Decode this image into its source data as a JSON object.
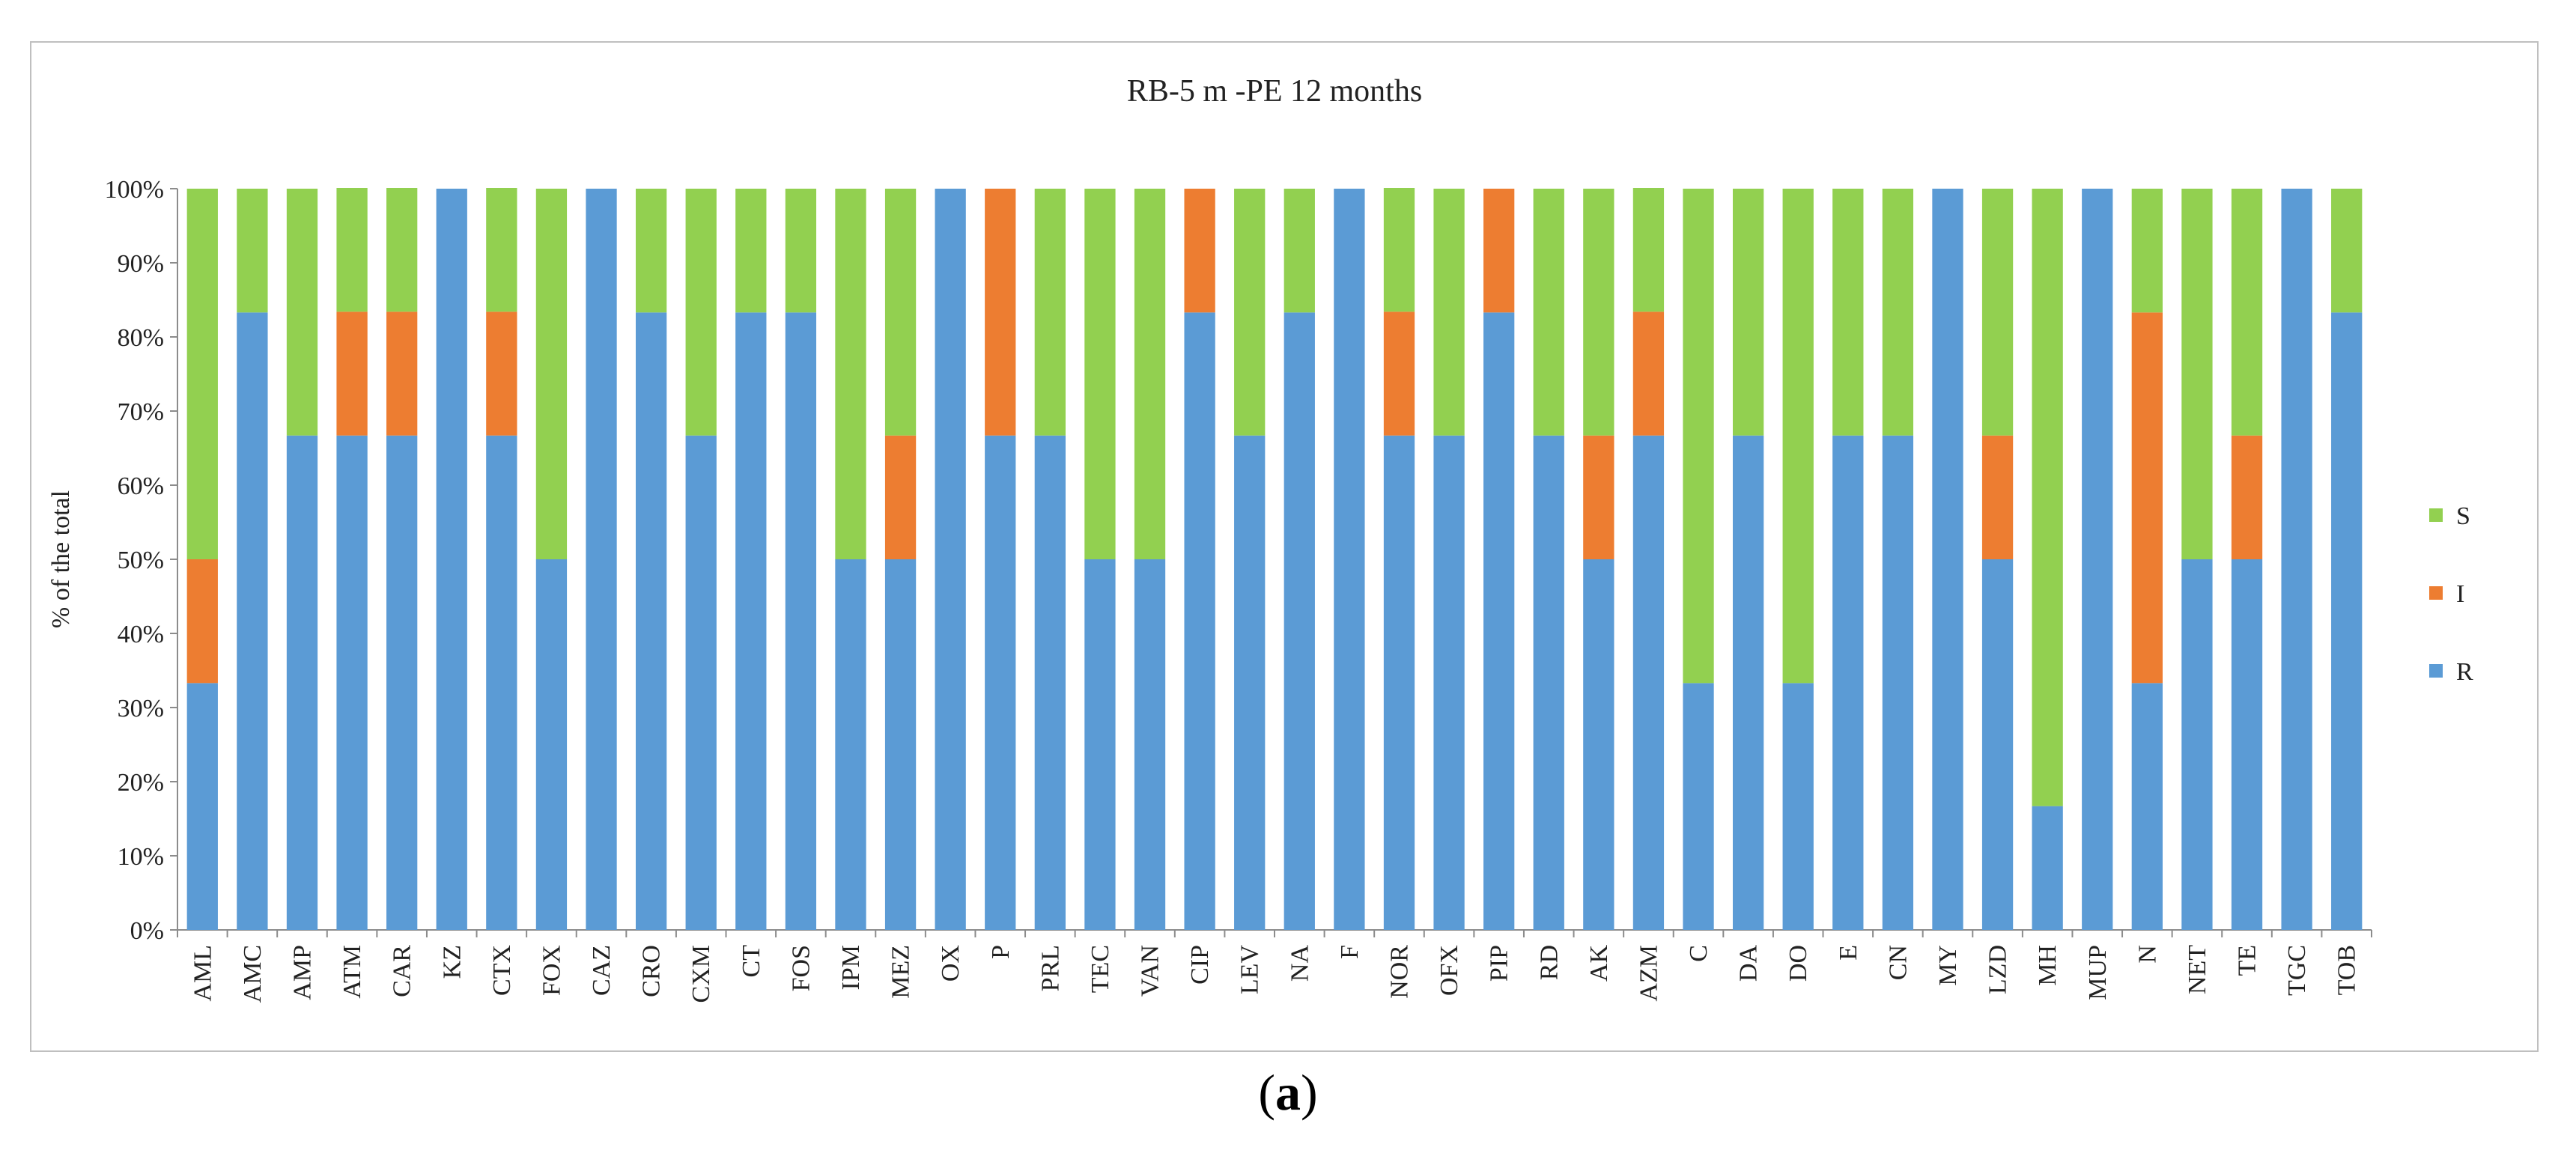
{
  "chart_data": {
    "type": "bar",
    "stacked": true,
    "title": "RB-5 m -PE 12 months",
    "xlabel": "",
    "ylabel": "% of the total",
    "ylim": [
      0,
      100
    ],
    "yticks": [
      "0%",
      "10%",
      "20%",
      "30%",
      "40%",
      "50%",
      "60%",
      "70%",
      "80%",
      "90%",
      "100%"
    ],
    "grid": false,
    "legend_position": "right",
    "categories": [
      "AML",
      "AMC",
      "AMP",
      "ATM",
      "CAR",
      "KZ",
      "CTX",
      "FOX",
      "CAZ",
      "CRO",
      "CXM",
      "CT",
      "FOS",
      "IPM",
      "MEZ",
      "OX",
      "P",
      "PRL",
      "TEC",
      "VAN",
      "CIP",
      "LEV",
      "NA",
      "F",
      "NOR",
      "OFX",
      "PIP",
      "RD",
      "AK",
      "AZM",
      "C",
      "DA",
      "DO",
      "E",
      "CN",
      "MY",
      "LZD",
      "MH",
      "MUP",
      "N",
      "NET",
      "TE",
      "TGC",
      "TOB"
    ],
    "series": [
      {
        "name": "R",
        "color": "#5b9bd5",
        "values": [
          33.3,
          83.3,
          66.7,
          66.7,
          66.7,
          100,
          66.7,
          50,
          100,
          83.3,
          66.7,
          83.3,
          83.3,
          50,
          50,
          100,
          66.7,
          66.7,
          50,
          50,
          83.3,
          66.7,
          83.3,
          100,
          66.7,
          66.7,
          83.3,
          66.7,
          50,
          66.7,
          33.3,
          66.7,
          33.3,
          66.7,
          66.7,
          100,
          50,
          16.7,
          100,
          33.3,
          50,
          50,
          100,
          83.3
        ]
      },
      {
        "name": "I",
        "color": "#ed7d31",
        "values": [
          16.7,
          0,
          0,
          16.7,
          16.7,
          0,
          16.7,
          0,
          0,
          0,
          0,
          0,
          0,
          0,
          16.7,
          0,
          33.3,
          0,
          0,
          0,
          16.7,
          0,
          0,
          0,
          16.7,
          0,
          16.7,
          0,
          16.7,
          16.7,
          0,
          0,
          0,
          0,
          0,
          0,
          16.7,
          0,
          0,
          50,
          0,
          16.7,
          0,
          0
        ]
      },
      {
        "name": "S",
        "color": "#92d050",
        "values": [
          50,
          16.7,
          33.3,
          16.7,
          16.7,
          0,
          16.7,
          50,
          0,
          16.7,
          33.3,
          16.7,
          16.7,
          50,
          33.3,
          0,
          0,
          33.3,
          50,
          50,
          0,
          33.3,
          16.7,
          0,
          16.7,
          33.3,
          0,
          33.3,
          33.3,
          16.7,
          66.7,
          33.3,
          66.7,
          33.3,
          33.3,
          0,
          33.3,
          83.3,
          0,
          16.7,
          50,
          33.3,
          0,
          16.7
        ]
      }
    ],
    "legend_order": [
      "S",
      "I",
      "R"
    ]
  },
  "caption": {
    "open": "(",
    "label": "a",
    "close": ")"
  }
}
